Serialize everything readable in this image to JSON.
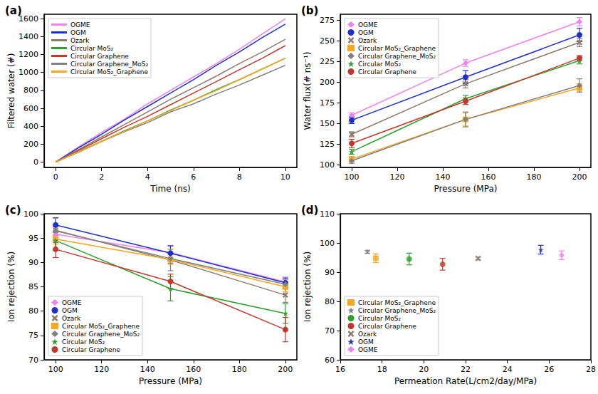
{
  "chart_data": [
    {
      "type": "line",
      "title": "(a)",
      "x_label": "Time (ns)",
      "y_label": "Filtered water (#)",
      "xlim": [
        -0.5,
        10.5
      ],
      "xticks": [
        0,
        2,
        4,
        6,
        8,
        10
      ],
      "ylim": [
        -60,
        1650
      ],
      "yticks": [
        0,
        200,
        400,
        600,
        800,
        1000,
        1200,
        1400,
        1600
      ],
      "grid": false,
      "legend": "upper left",
      "x": [
        0,
        1,
        2,
        3,
        4,
        5,
        6,
        7,
        8,
        9,
        10
      ],
      "series": [
        {
          "name": "OGME",
          "color": "#ee82ee",
          "values": [
            0,
            170,
            330,
            480,
            650,
            800,
            950,
            1100,
            1260,
            1430,
            1600
          ]
        },
        {
          "name": "OGM",
          "color": "#1f2fcc",
          "values": [
            0,
            160,
            310,
            470,
            620,
            770,
            920,
            1080,
            1230,
            1390,
            1540
          ]
        },
        {
          "name": "Ozark",
          "color": "#8c7b6b",
          "values": [
            0,
            140,
            280,
            420,
            560,
            700,
            830,
            960,
            1100,
            1230,
            1370
          ]
        },
        {
          "name": "Circular MoS₂",
          "color": "#2ca02c",
          "values": [
            0,
            110,
            230,
            350,
            460,
            580,
            690,
            810,
            920,
            1040,
            1160
          ]
        },
        {
          "name": "Circular Graphene",
          "color": "#c0392b",
          "values": [
            0,
            130,
            260,
            390,
            510,
            640,
            770,
            900,
            1030,
            1160,
            1300
          ]
        },
        {
          "name": "Circular Graphene_MoS₂",
          "color": "#808080",
          "values": [
            0,
            120,
            230,
            340,
            440,
            560,
            650,
            760,
            860,
            970,
            1080
          ]
        },
        {
          "name": "Circular MoS₂_Graphene",
          "color": "#f5a623",
          "values": [
            0,
            115,
            230,
            345,
            460,
            575,
            690,
            800,
            920,
            1040,
            1160
          ]
        }
      ]
    },
    {
      "type": "line",
      "title": "(b)",
      "x_label": "Pressure (MPa)",
      "y_label": "Water flux(# ns⁻¹)",
      "xlim": [
        95,
        205
      ],
      "xticks": [
        100,
        120,
        140,
        160,
        180,
        200
      ],
      "ylim": [
        97,
        282
      ],
      "yticks": [
        100,
        125,
        150,
        175,
        200,
        225,
        250,
        275
      ],
      "grid": false,
      "legend": "upper left",
      "x": [
        100,
        150,
        200
      ],
      "series": [
        {
          "name": "OGME",
          "color": "#ee82ee",
          "marker": "diamond",
          "values": [
            160,
            223,
            273
          ],
          "errors": [
            3,
            4,
            5
          ]
        },
        {
          "name": "OGM",
          "color": "#1f2fcc",
          "marker": "circle",
          "values": [
            154,
            206,
            257
          ],
          "errors": [
            4,
            8,
            8
          ]
        },
        {
          "name": "Ozark",
          "color": "#8c7b6b",
          "marker": "x",
          "values": [
            137,
            198,
            248
          ],
          "errors": [
            3,
            5,
            5
          ]
        },
        {
          "name": "Circular MoS₂_Graphene",
          "color": "#f5a623",
          "marker": "square",
          "values": [
            107,
            155,
            193
          ],
          "errors": [
            3,
            8,
            5
          ]
        },
        {
          "name": "Circular Graphene_MoS₂",
          "color": "#808080",
          "marker": "diamond",
          "values": [
            105,
            155,
            196
          ],
          "errors": [
            3,
            9,
            8
          ]
        },
        {
          "name": "Circular MoS₂",
          "color": "#2ca02c",
          "marker": "star",
          "values": [
            116,
            180,
            226
          ],
          "errors": [
            3,
            4,
            4
          ]
        },
        {
          "name": "Circular Graphene",
          "color": "#c0392b",
          "marker": "circle",
          "values": [
            126,
            177,
            229
          ],
          "errors": [
            5,
            4,
            3
          ]
        }
      ]
    },
    {
      "type": "line",
      "title": "(c)",
      "x_label": "Pressure (MPa)",
      "y_label": "Ion rejection (%)",
      "xlim": [
        95,
        205
      ],
      "xticks": [
        100,
        120,
        140,
        160,
        180,
        200
      ],
      "ylim": [
        70,
        100
      ],
      "yticks": [
        70,
        75,
        80,
        85,
        90,
        95,
        100
      ],
      "grid": false,
      "legend": "lower left",
      "x": [
        100,
        150,
        200
      ],
      "series": [
        {
          "name": "OGME",
          "color": "#ee82ee",
          "marker": "diamond",
          "values": [
            95.8,
            92.0,
            86.0
          ],
          "errors": [
            1.5,
            1.5,
            1.0
          ]
        },
        {
          "name": "OGM",
          "color": "#1f2fcc",
          "marker": "circle",
          "values": [
            97.7,
            91.9,
            85.8
          ],
          "errors": [
            1.5,
            1.5,
            1.0
          ]
        },
        {
          "name": "Ozark",
          "color": "#8c7b6b",
          "marker": "x",
          "values": [
            96.6,
            90.5,
            83.3
          ],
          "errors": [
            2.5,
            2.2,
            1.5
          ]
        },
        {
          "name": "Circular MoS₂_Graphene",
          "color": "#f5a623",
          "marker": "square",
          "values": [
            94.8,
            90.6,
            85.0
          ],
          "errors": [
            1.0,
            1.0,
            1.0
          ]
        },
        {
          "name": "Circular Graphene_MoS₂",
          "color": "#808080",
          "marker": "diamond",
          "values": [
            96.5,
            90.8,
            85.5
          ],
          "errors": [
            1.0,
            1.0,
            1.0
          ]
        },
        {
          "name": "Circular MoS₂",
          "color": "#2ca02c",
          "marker": "star",
          "values": [
            94.5,
            84.6,
            79.5
          ],
          "errors": [
            2.0,
            2.5,
            2.0
          ]
        },
        {
          "name": "Circular Graphene",
          "color": "#c0392b",
          "marker": "circle",
          "values": [
            92.7,
            86.1,
            76.2
          ],
          "errors": [
            1.7,
            1.5,
            2.5
          ]
        }
      ]
    },
    {
      "type": "scatter",
      "title": "(d)",
      "x_label": "Permeation Rate(L/cm2/day/MPa)",
      "y_label": "Ion rejection (%)",
      "xlim": [
        16,
        28
      ],
      "xticks": [
        16,
        18,
        20,
        22,
        24,
        26,
        28
      ],
      "ylim": [
        60,
        110
      ],
      "yticks": [
        60,
        70,
        80,
        90,
        100,
        110
      ],
      "grid": false,
      "legend": "lower left",
      "series": [
        {
          "name": "Circular MoS₂_Graphene",
          "color": "#f5a623",
          "marker": "square",
          "x": [
            17.7
          ],
          "values": [
            94.8
          ],
          "errors": [
            1.5
          ]
        },
        {
          "name": "Circular Graphene_MoS₂",
          "color": "#808080",
          "marker": "star",
          "x": [
            17.3
          ],
          "values": [
            97.0
          ],
          "errors": [
            0.5
          ]
        },
        {
          "name": "Circular MoS₂",
          "color": "#2ca02c",
          "marker": "circle",
          "x": [
            19.3
          ],
          "values": [
            94.5
          ],
          "errors": [
            2.0
          ]
        },
        {
          "name": "Circular Graphene",
          "color": "#c0392b",
          "marker": "circle",
          "x": [
            20.9
          ],
          "values": [
            92.7
          ],
          "errors": [
            2.0
          ]
        },
        {
          "name": "Ozark",
          "color": "#8c7b6b",
          "marker": "x",
          "x": [
            22.6
          ],
          "values": [
            94.7
          ],
          "errors": [
            0.5
          ]
        },
        {
          "name": "OGM",
          "color": "#1f2fcc",
          "marker": "star",
          "x": [
            25.6
          ],
          "values": [
            97.7
          ],
          "errors": [
            1.5
          ]
        },
        {
          "name": "OGME",
          "color": "#ee82ee",
          "marker": "diamond",
          "x": [
            26.6
          ],
          "values": [
            95.8
          ],
          "errors": [
            1.5
          ]
        }
      ]
    }
  ]
}
